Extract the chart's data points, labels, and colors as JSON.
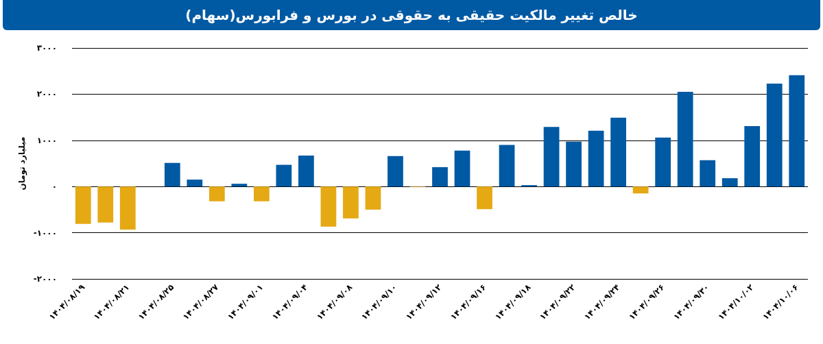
{
  "chart_data": {
    "type": "bar",
    "title": "خالص تغییر مالکیت حقیقی به حقوقی در بورس و فرابورس(سهام)",
    "ylabel": "میلیارد تومان",
    "categories": [
      "۱۴۰۴/۰۸/۱۹",
      null,
      "۱۴۰۴/۰۸/۲۱",
      null,
      "۱۴۰۴/۰۸/۲۵",
      null,
      "۱۴۰۴/۰۸/۲۷",
      null,
      "۱۴۰۴/۰۹/۰۱",
      null,
      "۱۴۰۴/۰۹/۰۴",
      null,
      "۱۴۰۴/۰۹/۰۸",
      null,
      "۱۴۰۴/۰۹/۱۰",
      null,
      "۱۴۰۴/۰۹/۱۲",
      null,
      "۱۴۰۴/۰۹/۱۶",
      null,
      "۱۴۰۴/۰۹/۱۸",
      null,
      "۱۴۰۴/۰۹/۲۲",
      null,
      "۱۴۰۴/۰۹/۲۴",
      null,
      "۱۴۰۴/۰۹/۲۶",
      null,
      "۱۴۰۴/۰۹/۳۰",
      null,
      "۱۴۰۴/۱۰/۰۲",
      null,
      "۱۴۰۴/۱۰/۰۶"
    ],
    "values": [
      -810,
      -780,
      -930,
      null,
      510,
      150,
      -320,
      60,
      -320,
      470,
      670,
      -870,
      -690,
      -500,
      660,
      -10,
      420,
      780,
      -490,
      900,
      30,
      1290,
      970,
      1210,
      1490,
      -150,
      1060,
      2050,
      570,
      180,
      1310,
      2230,
      2410
    ],
    "colors": [
      "#e5a914",
      "#e5a914",
      "#e5a914",
      "#e5a914",
      "#0059a3",
      "#0059a3",
      "#e5a914",
      "#0059a3",
      "#e5a914",
      "#0059a3",
      "#0059a3",
      "#e5a914",
      "#e5a914",
      "#e5a914",
      "#0059a3",
      "#e5a914",
      "#0059a3",
      "#0059a3",
      "#e5a914",
      "#0059a3",
      "#0059a3",
      "#0059a3",
      "#0059a3",
      "#0059a3",
      "#0059a3",
      "#e5a914",
      "#0059a3",
      "#0059a3",
      "#0059a3",
      "#0059a3",
      "#0059a3",
      "#0059a3",
      "#0059a3"
    ],
    "ylim": [
      -2000,
      3000
    ],
    "yticks": [
      {
        "value": -2000,
        "label": "-۲۰۰۰"
      },
      {
        "value": -1000,
        "label": "-۱۰۰۰"
      },
      {
        "value": 0,
        "label": "۰"
      },
      {
        "value": 1000,
        "label": "۱۰۰۰"
      },
      {
        "value": 2000,
        "label": "۲۰۰۰"
      },
      {
        "value": 3000,
        "label": "۳۰۰۰"
      }
    ],
    "grid": "y"
  }
}
